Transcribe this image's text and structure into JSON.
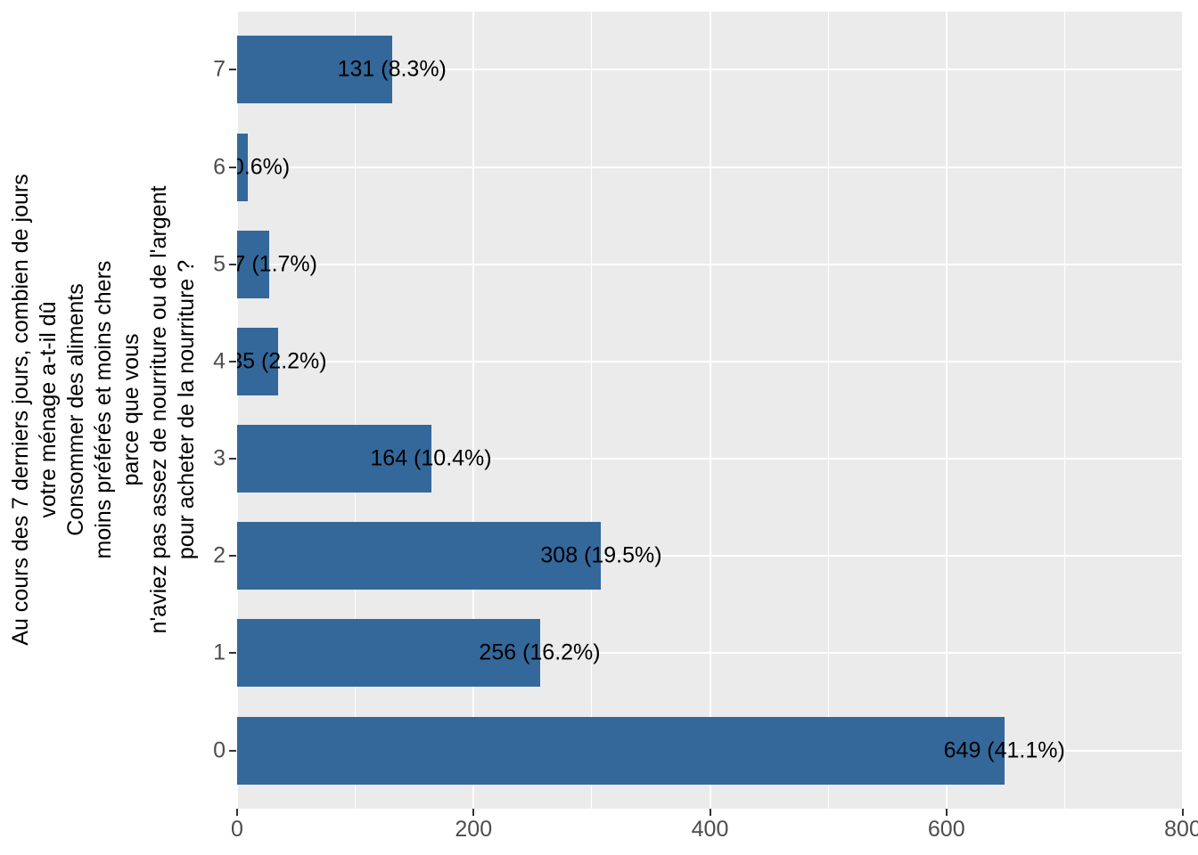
{
  "chart_data": {
    "type": "bar",
    "orientation": "horizontal",
    "title": "",
    "xlabel": "",
    "ylabel_lines": [
      "Au cours des 7 derniers jours, combien de jours",
      "votre ménage a-t-il dû",
      "Consommer des aliments",
      "moins préférés et moins chers",
      "parce que vous",
      "n'aviez pas assez de nourriture ou de l'argent",
      "pour acheter de la nourriture ?"
    ],
    "categories": [
      "7",
      "6",
      "5",
      "4",
      "3",
      "2",
      "1",
      "0"
    ],
    "values": [
      131,
      9,
      27,
      35,
      164,
      308,
      256,
      649
    ],
    "percentages": [
      8.3,
      0.6,
      1.7,
      2.2,
      10.4,
      19.5,
      16.2,
      41.1
    ],
    "bar_labels": [
      "131 (8.3%)",
      "9 (0.6%)",
      "27 (1.7%)",
      "35 (2.2%)",
      "164 (10.4%)",
      "308 (19.5%)",
      "256 (16.2%)",
      "649 (41.1%)"
    ],
    "xlim": [
      0,
      800
    ],
    "x_ticks": [
      0,
      200,
      400,
      600,
      800
    ],
    "x_tick_labels": [
      "0",
      "200",
      "400",
      "600",
      "800"
    ],
    "grid": "vertical major and minor gridlines, horizontal major gridlines at category centers, white on grey panel",
    "legend": "none",
    "colors": {
      "bar": "#34689B",
      "panel_bg": "#EBEBEB",
      "grid": "#FFFFFF",
      "axis_text": "#4D4D4D",
      "tick_mark": "#333333",
      "label_text": "#000000",
      "background": "#FFFFFF"
    }
  }
}
